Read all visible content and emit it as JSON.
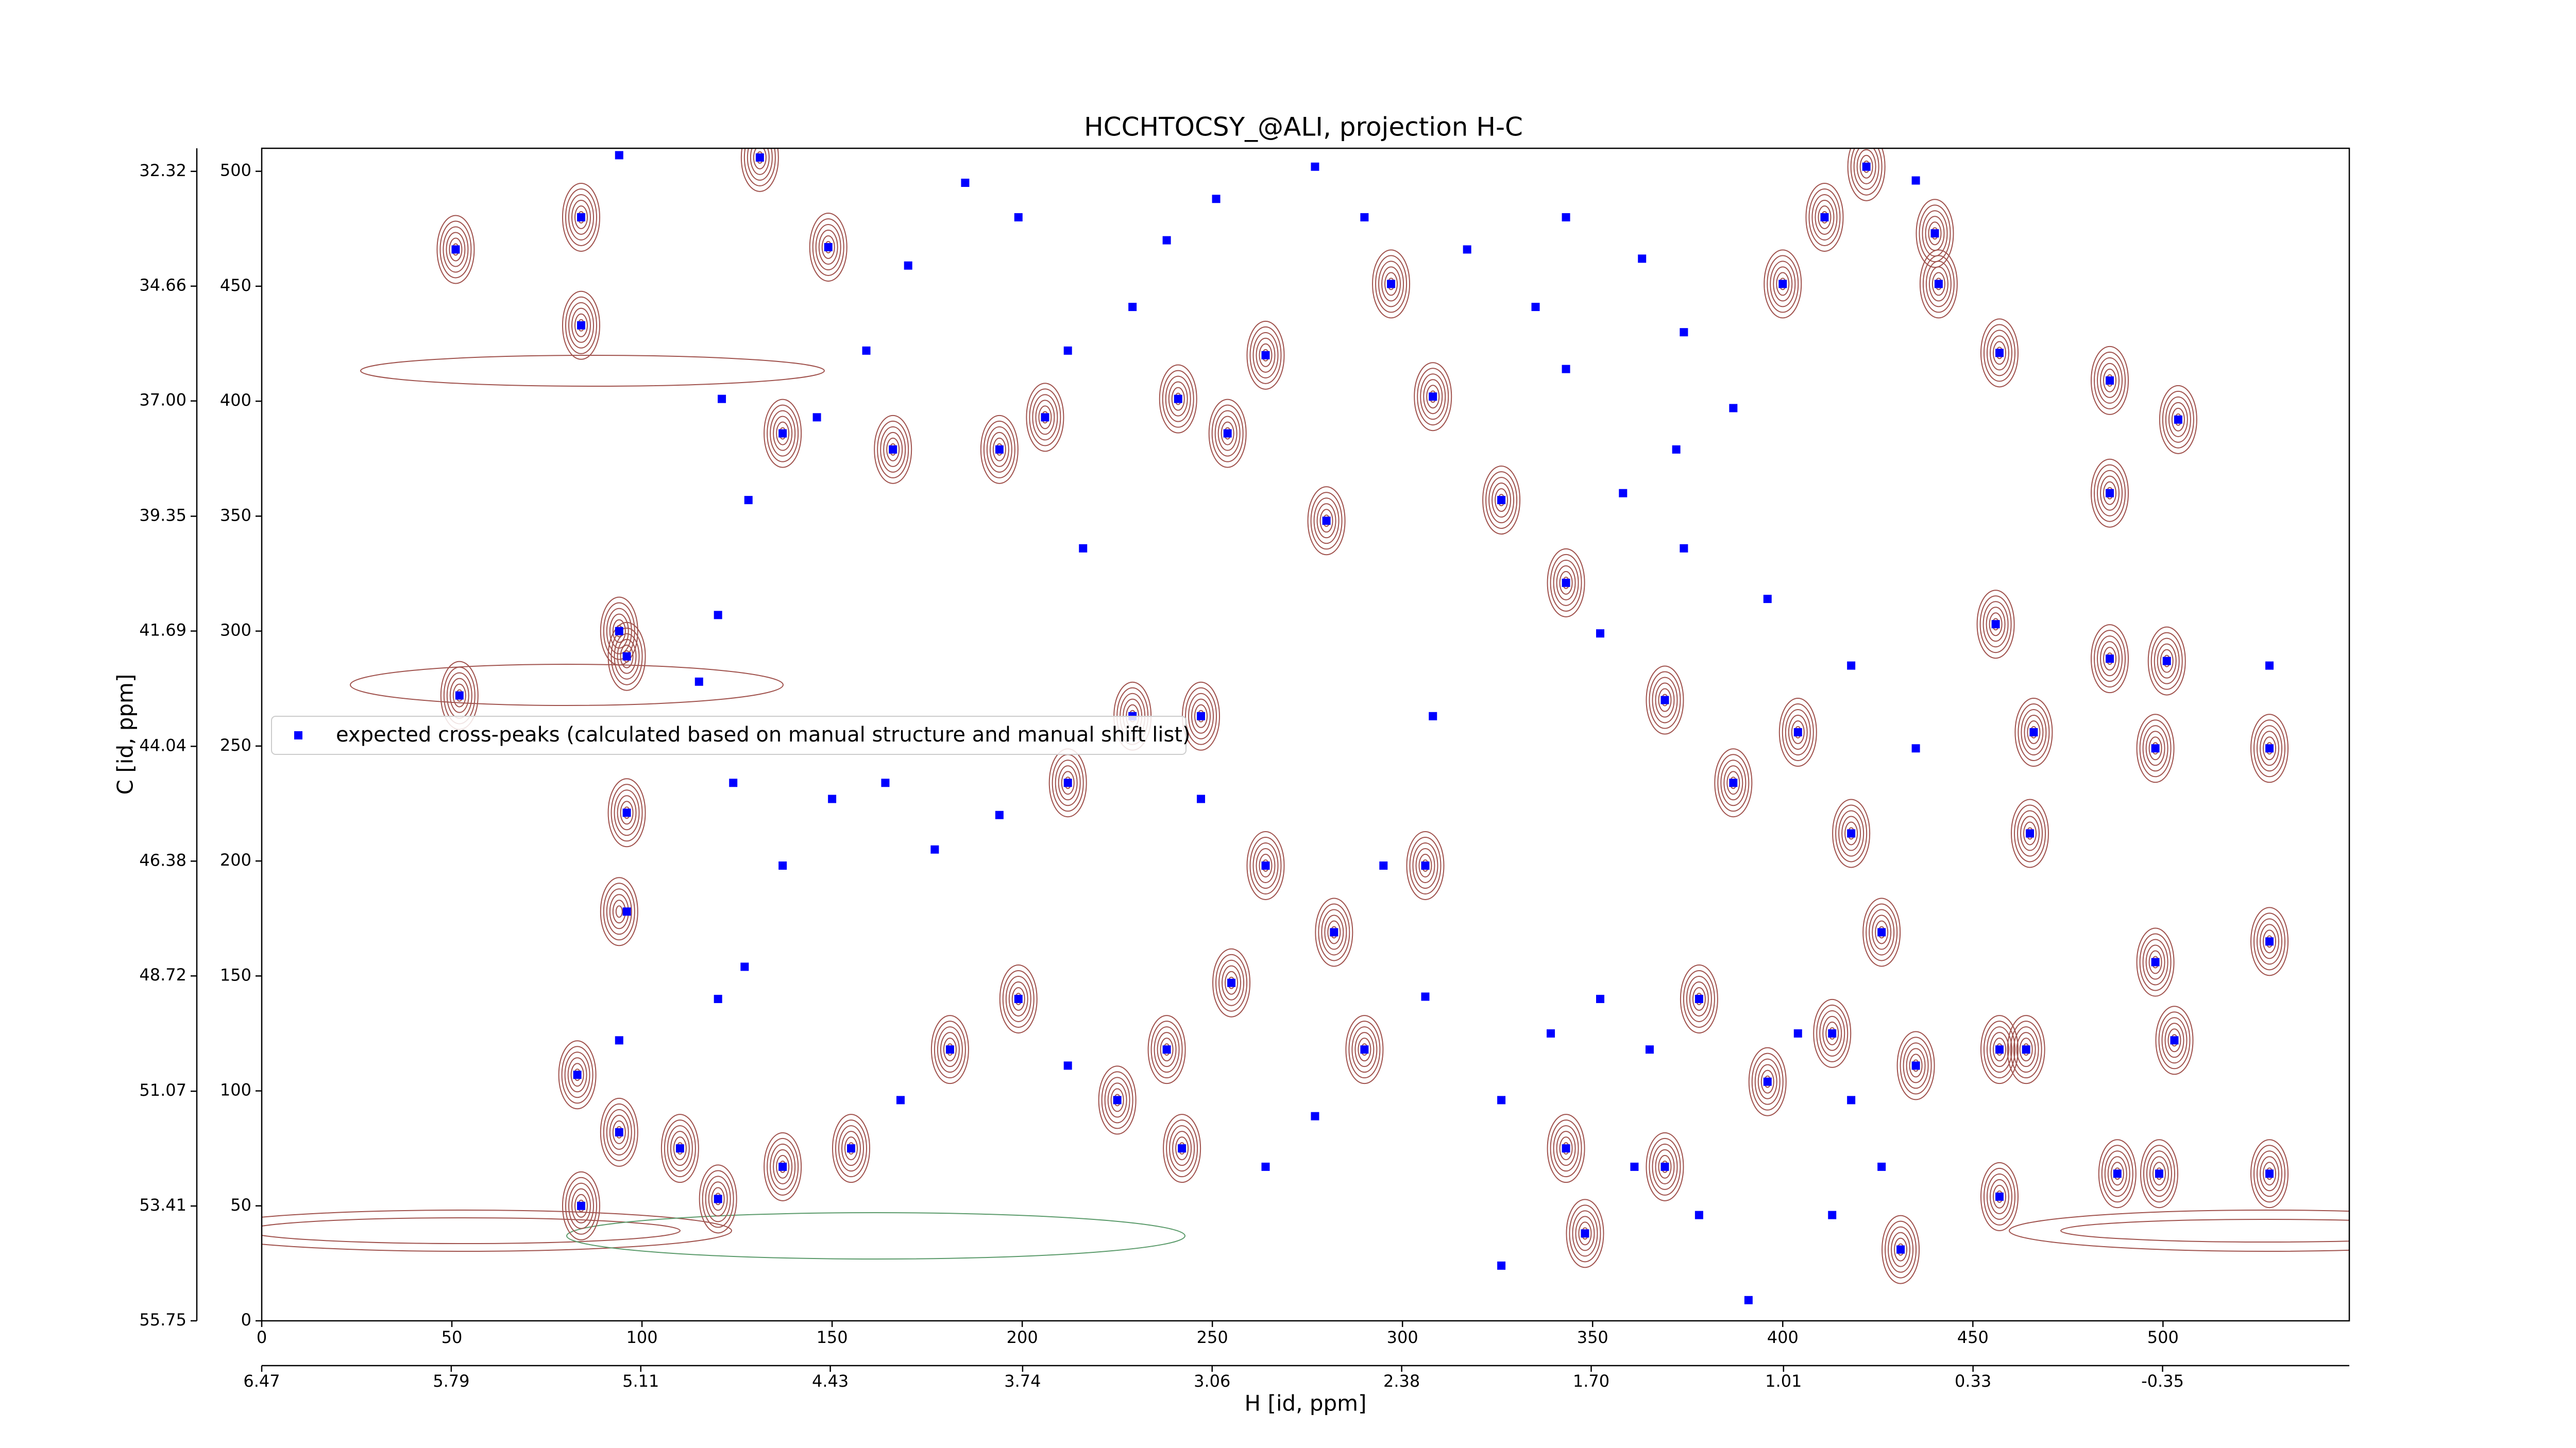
{
  "chart_data": {
    "type": "scatter",
    "title": "HCCHTOCSY_@ALI, projection H-C",
    "xlabel": "H [id, ppm]",
    "ylabel": "C [id, ppm]",
    "xlim": [
      0,
      549
    ],
    "ylim": [
      0,
      510
    ],
    "xticks": [
      0,
      50,
      100,
      150,
      200,
      250,
      300,
      350,
      400,
      450,
      500
    ],
    "yticks": [
      0,
      50,
      100,
      150,
      200,
      250,
      300,
      350,
      400,
      450,
      500
    ],
    "x2lim": [
      6.47,
      -1.02
    ],
    "x2ticks": [
      6.47,
      5.79,
      5.11,
      4.43,
      3.74,
      3.06,
      2.38,
      {
        "value": 1.7,
        "label": "1.70"
      },
      1.01,
      0.33,
      -0.35
    ],
    "y2lim": [
      55.75,
      31.85
    ],
    "y2ticks": [
      32.32,
      34.66,
      {
        "value": 37,
        "label": "37.00"
      },
      39.35,
      41.69,
      44.04,
      46.38,
      48.72,
      51.07,
      53.41,
      55.75
    ],
    "legend": "center left",
    "series": [
      {
        "name": "expected cross-peaks (calculated based on manual structure and manual shift list)",
        "color": "#0000ff",
        "x": [
          94,
          84,
          84,
          94,
          96,
          96,
          96,
          94,
          83,
          94,
          84,
          51,
          52,
          131,
          149,
          121,
          137,
          166,
          194,
          206,
          216,
          241,
          254,
          264,
          280,
          297,
          308,
          326,
          343,
          352,
          369,
          387,
          404,
          418,
          426,
          413,
          396,
          369,
          348,
          326,
          391,
          435,
          457,
          464,
          486,
          486,
          486,
          498,
          498,
          503,
          528,
          528,
          528,
          528,
          501,
          504,
          488,
          499,
          457,
          466,
          465,
          456,
          457,
          441,
          440,
          435,
          422,
          411,
          400,
          387,
          372,
          358,
          343,
          335,
          317,
          290,
          277,
          251,
          238,
          229,
          212,
          199,
          185,
          170,
          159,
          146,
          128,
          120,
          115,
          124,
          137,
          150,
          164,
          177,
          194,
          212,
          229,
          247,
          247,
          264,
          282,
          295,
          306,
          308,
          306,
          290,
          277,
          264,
          242,
          225,
          212,
          199,
          181,
          168,
          155,
          137,
          120,
          110,
          120,
          127,
          255,
          238,
          326,
          339,
          352,
          365,
          378,
          404,
          418,
          426,
          378,
          361,
          343,
          413,
          431,
          374,
          363,
          343,
          374,
          396,
          418,
          435
        ],
        "y": [
          507,
          480,
          433,
          300,
          289,
          221,
          178,
          122,
          107,
          82,
          50,
          466,
          272,
          506,
          467,
          401,
          386,
          379,
          379,
          393,
          336,
          401,
          386,
          420,
          348,
          451,
          402,
          357,
          321,
          299,
          270,
          234,
          256,
          212,
          169,
          125,
          104,
          67,
          38,
          24,
          9,
          111,
          118,
          118,
          288,
          360,
          409,
          249,
          156,
          122,
          249,
          165,
          64,
          285,
          287,
          392,
          64,
          64,
          54,
          256,
          212,
          303,
          421,
          451,
          473,
          496,
          502,
          480,
          451,
          397,
          379,
          360,
          414,
          441,
          466,
          480,
          502,
          488,
          470,
          441,
          422,
          480,
          495,
          459,
          422,
          393,
          357,
          307,
          278,
          234,
          198,
          227,
          234,
          205,
          220,
          234,
          263,
          263,
          227,
          198,
          169,
          198,
          198,
          263,
          141,
          118,
          89,
          67,
          75,
          96,
          111,
          140,
          118,
          96,
          75,
          67,
          53,
          75,
          140,
          154,
          147,
          118,
          96,
          125,
          140,
          118,
          140,
          125,
          96,
          67,
          46,
          67,
          75,
          46,
          31,
          430,
          462,
          480,
          336,
          314,
          285,
          249
        ]
      }
    ],
    "contour_peaks": {
      "color": "#a0524d",
      "x": [
        51,
        52,
        84,
        84,
        94,
        96,
        96,
        94,
        83,
        94,
        84,
        131,
        149,
        137,
        166,
        194,
        206,
        241,
        254,
        264,
        280,
        297,
        308,
        326,
        343,
        369,
        387,
        404,
        418,
        426,
        413,
        396,
        369,
        348,
        435,
        457,
        464,
        486,
        486,
        486,
        498,
        498,
        503,
        528,
        528,
        528,
        501,
        504,
        488,
        499,
        457,
        466,
        465,
        456,
        457,
        441,
        440,
        422,
        411,
        400,
        212,
        229,
        247,
        264,
        282,
        306,
        290,
        242,
        225,
        199,
        181,
        155,
        137,
        120,
        110,
        255,
        238,
        343,
        378,
        431
      ],
      "y": [
        466,
        272,
        480,
        433,
        300,
        289,
        221,
        178,
        107,
        82,
        50,
        506,
        467,
        386,
        379,
        379,
        393,
        401,
        386,
        420,
        348,
        451,
        402,
        357,
        321,
        270,
        234,
        256,
        212,
        169,
        125,
        104,
        67,
        38,
        111,
        118,
        118,
        288,
        360,
        409,
        249,
        156,
        122,
        249,
        165,
        64,
        287,
        392,
        64,
        64,
        54,
        256,
        212,
        303,
        421,
        451,
        473,
        502,
        480,
        451,
        234,
        263,
        263,
        198,
        169,
        198,
        118,
        75,
        96,
        140,
        118,
        75,
        67,
        53,
        75,
        147,
        118,
        75,
        140,
        31
      ]
    }
  }
}
